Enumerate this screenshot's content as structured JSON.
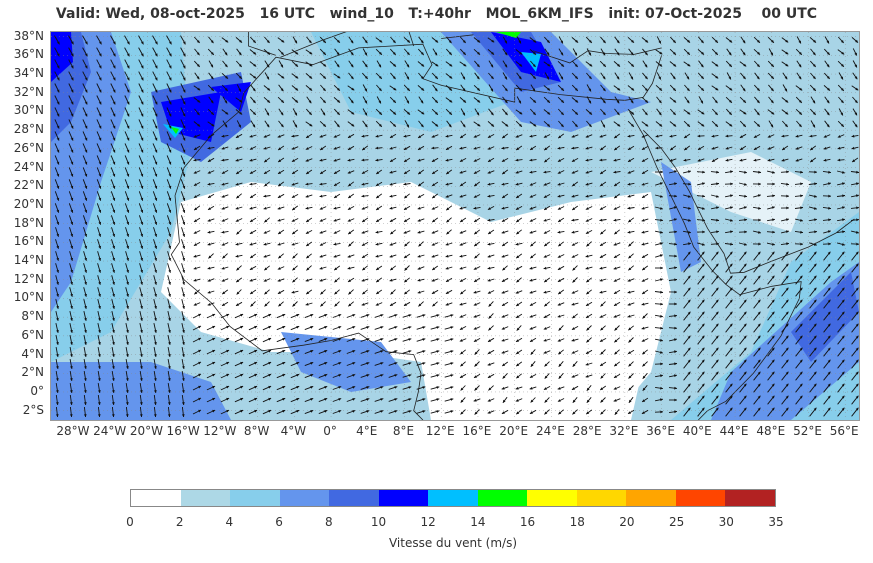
{
  "header": {
    "title": "Valid: Wed, 08-oct-2025   16 UTC   wind_10   T:+40hr   MOL_6KM_IFS   init: 07-Oct-2025    00 UTC"
  },
  "map": {
    "lat_labels": [
      "38°N",
      "36°N",
      "34°N",
      "32°N",
      "30°N",
      "28°N",
      "26°N",
      "24°N",
      "22°N",
      "20°N",
      "18°N",
      "16°N",
      "14°N",
      "12°N",
      "10°N",
      "8°N",
      "6°N",
      "4°N",
      "2°N",
      "0°",
      "2°S"
    ],
    "lon_labels": [
      "28°W",
      "24°W",
      "20°W",
      "16°W",
      "12°W",
      "8°W",
      "4°W",
      "0°",
      "4°E",
      "8°E",
      "12°E",
      "16°E",
      "20°E",
      "24°E",
      "28°E",
      "32°E",
      "36°E",
      "40°E",
      "44°E",
      "48°E",
      "52°E",
      "56°E"
    ],
    "lat_range": [
      -3,
      38.5
    ],
    "lon_range": [
      -30.5,
      57.5
    ]
  },
  "legend": {
    "ticks": [
      "0",
      "2",
      "4",
      "6",
      "8",
      "10",
      "12",
      "14",
      "16",
      "18",
      "20",
      "25",
      "30",
      "35"
    ],
    "colors": [
      "#ffffff",
      "#add8e6",
      "#87ceeb",
      "#6495ed",
      "#4169e1",
      "#0000ff",
      "#00bfff",
      "#00ff00",
      "#ffff00",
      "#ffd700",
      "#ffa500",
      "#ff4500",
      "#b22222"
    ],
    "label": "Vitesse du vent (m/s)"
  }
}
